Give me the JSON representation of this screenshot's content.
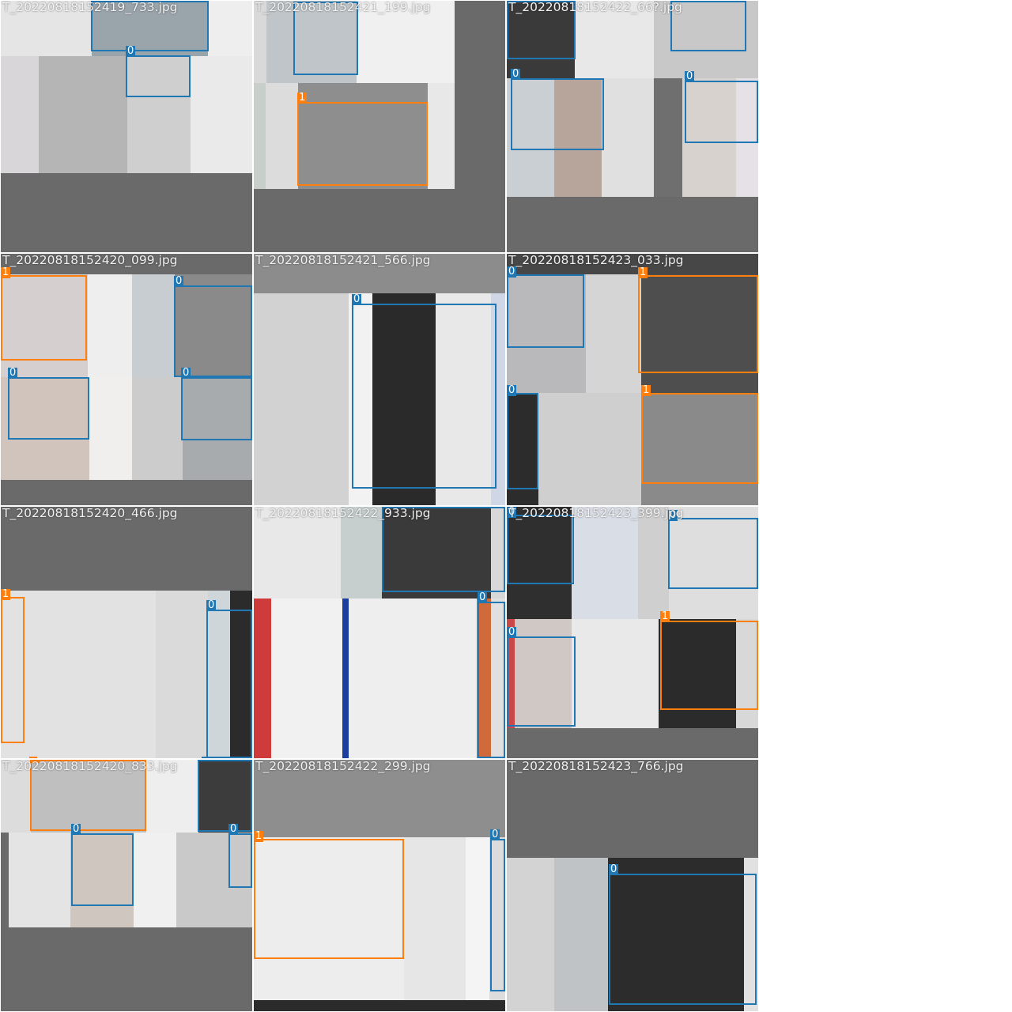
{
  "colors": {
    "class_0": "#1f77b4",
    "class_1": "#ff7f0e",
    "padding": "#6a6a6a"
  },
  "tiles": [
    {
      "filename": "T_20220818152419_733.jpg",
      "boxes": [
        {
          "label": "0"
        }
      ]
    },
    {
      "filename": "T_20220818152421_199.jpg",
      "boxes": [
        {
          "label": "1"
        }
      ]
    },
    {
      "filename": "T_20220818152422_66?.jpg",
      "boxes": [
        {
          "label": "0"
        },
        {
          "label": "0"
        }
      ]
    },
    {
      "filename": "T_20220818152420_099.jpg",
      "boxes": [
        {
          "label": "1"
        },
        {
          "label": "0"
        },
        {
          "label": "0"
        },
        {
          "label": "0"
        }
      ]
    },
    {
      "filename": "T_20220818152421_566.jpg",
      "boxes": [
        {
          "label": "0"
        }
      ]
    },
    {
      "filename": "T_20220818152423_033.jpg",
      "boxes": [
        {
          "label": "0"
        },
        {
          "label": "1"
        },
        {
          "label": "0"
        },
        {
          "label": "1"
        }
      ]
    },
    {
      "filename": "T_20220818152420_466.jpg",
      "boxes": [
        {
          "label": "1"
        },
        {
          "label": "0"
        }
      ]
    },
    {
      "filename": "T_20220818152422_933.jpg",
      "boxes": [
        {
          "label": "0"
        },
        {
          "label": "0"
        }
      ]
    },
    {
      "filename": "T_20220818152423_399.jpg",
      "boxes": [
        {
          "label": "0"
        },
        {
          "label": "0"
        },
        {
          "label": "0"
        },
        {
          "label": "1"
        }
      ]
    },
    {
      "filename": "T_20220818152420_833.jpg",
      "boxes": [
        {
          "label": "1"
        },
        {
          "label": "0"
        },
        {
          "label": "0"
        }
      ]
    },
    {
      "filename": "T_20220818152422_299.jpg",
      "boxes": [
        {
          "label": "1"
        },
        {
          "label": "0"
        }
      ]
    },
    {
      "filename": "T_20220818152423_766.jpg",
      "boxes": [
        {
          "label": "0"
        }
      ]
    }
  ]
}
